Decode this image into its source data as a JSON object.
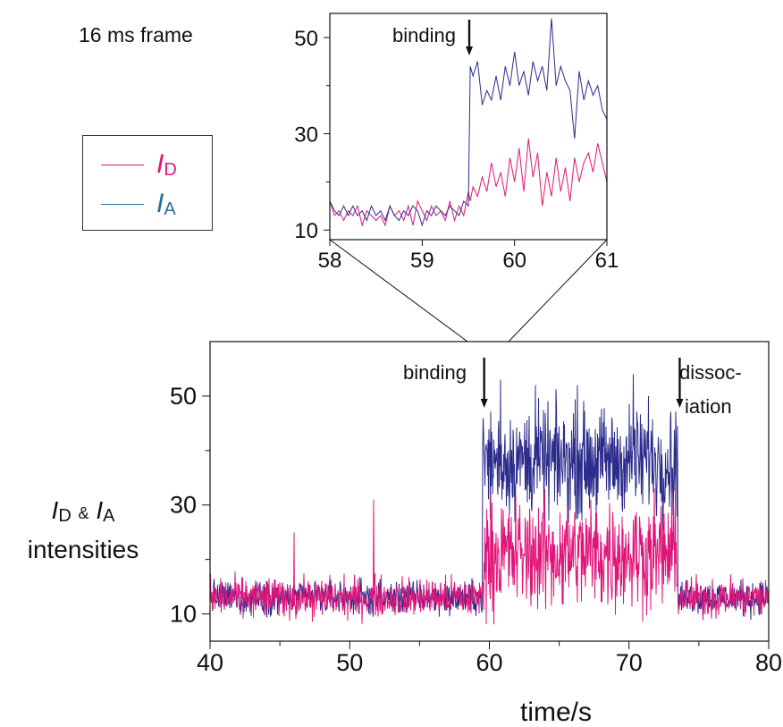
{
  "frame_note": "16 ms frame",
  "legend": {
    "donor": {
      "symbol": "I",
      "subscript": "D",
      "color": "#e6127e"
    },
    "acceptor": {
      "symbol": "I",
      "subscript": "A",
      "color": "#1f6fa3"
    }
  },
  "ylabel": {
    "line1": {
      "d_symbol": "I",
      "d_sub": "D",
      "amp": "&",
      "a_symbol": "I",
      "a_sub": "A"
    },
    "line2": "intensities"
  },
  "series_colors": {
    "donor": "#e0157a",
    "acceptor": "#2b2c8c"
  },
  "chart_data": [
    {
      "type": "line",
      "panel": "main",
      "xlabel": "time/s",
      "xlim": [
        40,
        80
      ],
      "ylim": [
        5,
        60
      ],
      "xticks": [
        40,
        50,
        60,
        70,
        80
      ],
      "yticks": [
        10,
        30,
        50
      ],
      "annotations": [
        {
          "text": "binding",
          "x": 59.5
        },
        {
          "text_lines": [
            "dissoc-",
            "iation"
          ],
          "x": 73.5
        }
      ],
      "segments": {
        "before_binding": {
          "x_range": [
            40,
            59.5
          ],
          "donor_mean": 13,
          "acceptor_mean": 13
        },
        "bound": {
          "x_range": [
            59.5,
            73.5
          ],
          "donor_mean": 21,
          "acceptor_mean": 38
        },
        "after_dissociation": {
          "x_range": [
            73.5,
            80
          ],
          "donor_mean": 13,
          "acceptor_mean": 13
        }
      },
      "spikes": [
        {
          "series": "donor",
          "x": 46.0,
          "y": 25
        },
        {
          "series": "donor",
          "x": 51.7,
          "y": 31
        },
        {
          "series": "acceptor",
          "x": 60.8,
          "y": 53
        },
        {
          "series": "acceptor",
          "x": 63.3,
          "y": 52
        },
        {
          "series": "acceptor",
          "x": 66.3,
          "y": 52
        },
        {
          "series": "acceptor",
          "x": 70.3,
          "y": 54
        },
        {
          "series": "acceptor",
          "x": 71.4,
          "y": 50
        }
      ]
    },
    {
      "type": "line",
      "panel": "inset",
      "xlim": [
        58,
        61
      ],
      "ylim": [
        8,
        55
      ],
      "xticks": [
        58,
        59,
        60,
        61
      ],
      "yticks": [
        10,
        30,
        50
      ],
      "annotations": [
        {
          "text": "binding",
          "x": 59.55
        }
      ],
      "series": [
        {
          "key": "donor",
          "values": [
            [
              58.0,
              16
            ],
            [
              58.05,
              13
            ],
            [
              58.1,
              14
            ],
            [
              58.15,
              12
            ],
            [
              58.2,
              14
            ],
            [
              58.25,
              13
            ],
            [
              58.3,
              15
            ],
            [
              58.35,
              11
            ],
            [
              58.4,
              14
            ],
            [
              58.45,
              13
            ],
            [
              58.5,
              12
            ],
            [
              58.55,
              13
            ],
            [
              58.6,
              11
            ],
            [
              58.65,
              15
            ],
            [
              58.7,
              13
            ],
            [
              58.75,
              14
            ],
            [
              58.8,
              12
            ],
            [
              58.85,
              15
            ],
            [
              58.9,
              11
            ],
            [
              58.95,
              16
            ],
            [
              59.0,
              14
            ],
            [
              59.05,
              12
            ],
            [
              59.1,
              15
            ],
            [
              59.15,
              13
            ],
            [
              59.2,
              14
            ],
            [
              59.25,
              12
            ],
            [
              59.3,
              16
            ],
            [
              59.35,
              12
            ],
            [
              59.4,
              15
            ],
            [
              59.45,
              13
            ],
            [
              59.5,
              18
            ],
            [
              59.52,
              16
            ],
            [
              59.55,
              19
            ],
            [
              59.6,
              17
            ],
            [
              59.65,
              21
            ],
            [
              59.7,
              18
            ],
            [
              59.75,
              24
            ],
            [
              59.8,
              19
            ],
            [
              59.85,
              22
            ],
            [
              59.9,
              17
            ],
            [
              59.95,
              25
            ],
            [
              60.0,
              20
            ],
            [
              60.05,
              27
            ],
            [
              60.1,
              18
            ],
            [
              60.15,
              29
            ],
            [
              60.2,
              21
            ],
            [
              60.25,
              26
            ],
            [
              60.3,
              15
            ],
            [
              60.35,
              22
            ],
            [
              60.4,
              17
            ],
            [
              60.45,
              25
            ],
            [
              60.5,
              18
            ],
            [
              60.55,
              23
            ],
            [
              60.6,
              16
            ],
            [
              60.65,
              25
            ],
            [
              60.7,
              20
            ],
            [
              60.75,
              24
            ],
            [
              60.8,
              26
            ],
            [
              60.85,
              22
            ],
            [
              60.9,
              28
            ],
            [
              60.95,
              24
            ],
            [
              61.0,
              20
            ]
          ]
        },
        {
          "key": "acceptor",
          "values": [
            [
              58.0,
              16
            ],
            [
              58.05,
              14
            ],
            [
              58.1,
              13
            ],
            [
              58.15,
              15
            ],
            [
              58.2,
              13
            ],
            [
              58.25,
              15
            ],
            [
              58.3,
              13
            ],
            [
              58.35,
              14
            ],
            [
              58.4,
              12
            ],
            [
              58.45,
              15
            ],
            [
              58.5,
              13
            ],
            [
              58.55,
              14
            ],
            [
              58.6,
              12
            ],
            [
              58.65,
              15
            ],
            [
              58.7,
              13
            ],
            [
              58.75,
              12
            ],
            [
              58.8,
              14
            ],
            [
              58.85,
              13
            ],
            [
              58.9,
              15
            ],
            [
              58.95,
              14
            ],
            [
              59.0,
              11
            ],
            [
              59.05,
              14
            ],
            [
              59.1,
              13
            ],
            [
              59.15,
              15
            ],
            [
              59.2,
              14
            ],
            [
              59.25,
              13
            ],
            [
              59.3,
              15
            ],
            [
              59.35,
              14
            ],
            [
              59.4,
              13
            ],
            [
              59.45,
              16
            ],
            [
              59.5,
              15
            ],
            [
              59.52,
              44
            ],
            [
              59.55,
              42
            ],
            [
              59.6,
              45
            ],
            [
              59.65,
              36
            ],
            [
              59.7,
              39
            ],
            [
              59.75,
              37
            ],
            [
              59.8,
              42
            ],
            [
              59.85,
              37
            ],
            [
              59.9,
              44
            ],
            [
              59.95,
              40
            ],
            [
              60.0,
              47
            ],
            [
              60.05,
              40
            ],
            [
              60.1,
              43
            ],
            [
              60.15,
              38
            ],
            [
              60.2,
              45
            ],
            [
              60.25,
              41
            ],
            [
              60.3,
              44
            ],
            [
              60.35,
              39
            ],
            [
              60.4,
              54
            ],
            [
              60.45,
              40
            ],
            [
              60.5,
              44
            ],
            [
              60.55,
              41
            ],
            [
              60.6,
              39
            ],
            [
              60.65,
              29
            ],
            [
              60.7,
              43
            ],
            [
              60.75,
              37
            ],
            [
              60.8,
              41
            ],
            [
              60.85,
              38
            ],
            [
              60.9,
              40
            ],
            [
              60.95,
              35
            ],
            [
              61.0,
              33
            ]
          ]
        }
      ]
    }
  ]
}
